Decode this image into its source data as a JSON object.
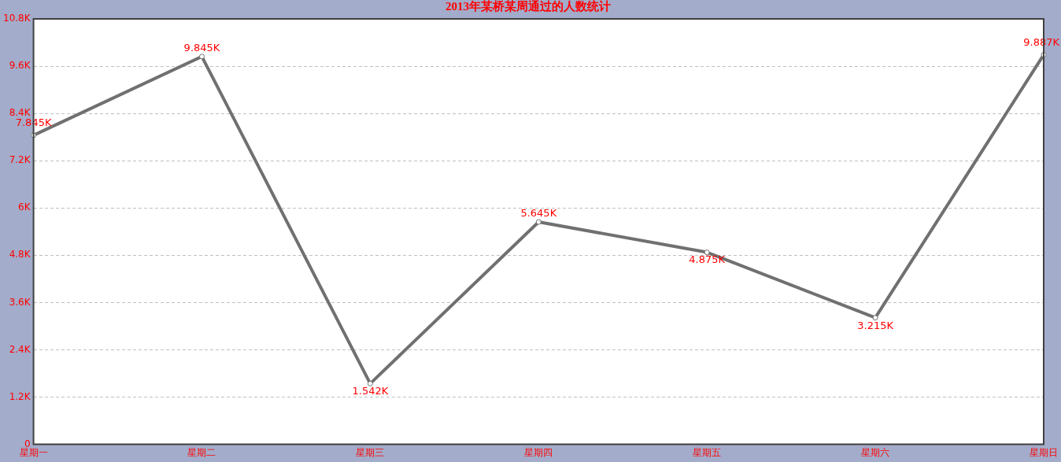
{
  "chart_data": {
    "type": "line",
    "title": "2013年某桥某周通过的人数统计",
    "categories": [
      "星期一",
      "星期二",
      "星期三",
      "星期四",
      "星期五",
      "星期六",
      "星期日"
    ],
    "series": [
      {
        "color": "#707070",
        "values": [
          7845,
          9845,
          1542,
          5645,
          4875,
          3215,
          9887
        ],
        "value_labels": [
          "7.845K",
          "9.845K",
          "1.542K",
          "5.645K",
          "4.875K",
          "3.215K",
          "9.887K"
        ]
      }
    ],
    "ylim": [
      0,
      10800
    ],
    "yticks": [
      0,
      {
        "value": 1200,
        "label": "1.2K"
      },
      {
        "value": 2400,
        "label": "2.4K"
      },
      {
        "value": 3600,
        "label": "3.6K"
      },
      {
        "value": 4800,
        "label": "4.8K"
      },
      {
        "value": 6000,
        "label": "6K"
      },
      {
        "value": 7200,
        "label": "7.2K"
      },
      {
        "value": 8400,
        "label": "8.4K"
      },
      {
        "value": 9600,
        "label": "9.6K"
      },
      {
        "value": 10800,
        "label": "10.8K"
      }
    ],
    "grid": "y",
    "legend": false,
    "marker": "circle",
    "line_style": "solid"
  }
}
